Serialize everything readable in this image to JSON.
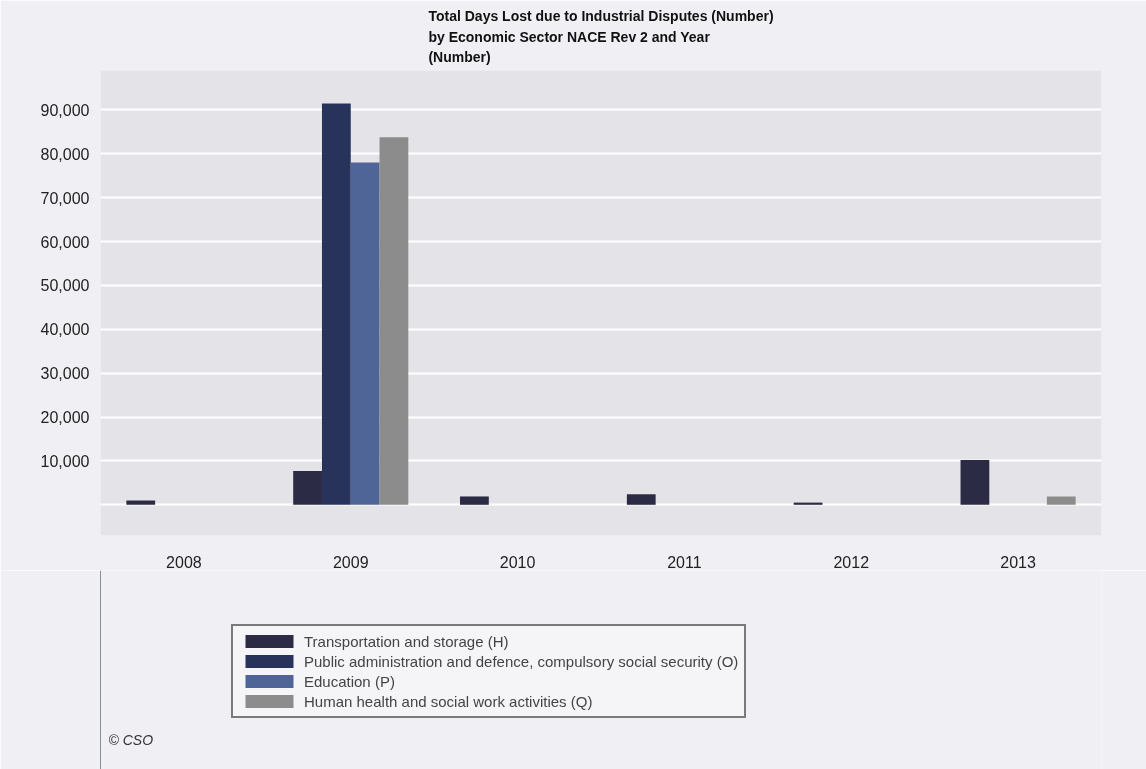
{
  "chart_data": {
    "type": "bar",
    "title": "Total Days Lost due to Industrial Disputes (Number)\nby Economic Sector NACE Rev 2 and Year\n(Number)",
    "categories": [
      "2008",
      "2009",
      "2010",
      "2011",
      "2012",
      "2013"
    ],
    "series": [
      {
        "name": "Transportation and storage (H)",
        "color": "#2b2b45",
        "values": [
          1000,
          7700,
          1900,
          2400,
          500,
          10200
        ]
      },
      {
        "name": "Public administration and defence, compulsory social security (O)",
        "color": "#27335a",
        "values": [
          0,
          91500,
          0,
          0,
          0,
          0
        ]
      },
      {
        "name": "Education (P)",
        "color": "#4f6497",
        "values": [
          0,
          78000,
          0,
          0,
          0,
          0
        ]
      },
      {
        "name": "Human health and social work activities (Q)",
        "color": "#8c8c8c",
        "values": [
          0,
          83800,
          0,
          0,
          0,
          1900
        ]
      }
    ],
    "ylim": [
      -7000,
      99000
    ],
    "yticks": [
      {
        "value": 0,
        "label": null
      },
      {
        "value": 10000,
        "label": "10,000"
      },
      {
        "value": 20000,
        "label": "20,000"
      },
      {
        "value": 30000,
        "label": "30,000"
      },
      {
        "value": 40000,
        "label": "40,000"
      },
      {
        "value": 50000,
        "label": "50,000"
      },
      {
        "value": 60000,
        "label": "60,000"
      },
      {
        "value": 70000,
        "label": "70,000"
      },
      {
        "value": 80000,
        "label": "80,000"
      },
      {
        "value": 90000,
        "label": "90,000"
      }
    ],
    "grid": "y",
    "legend": "bottom",
    "annotations": [
      "© CSO"
    ]
  }
}
